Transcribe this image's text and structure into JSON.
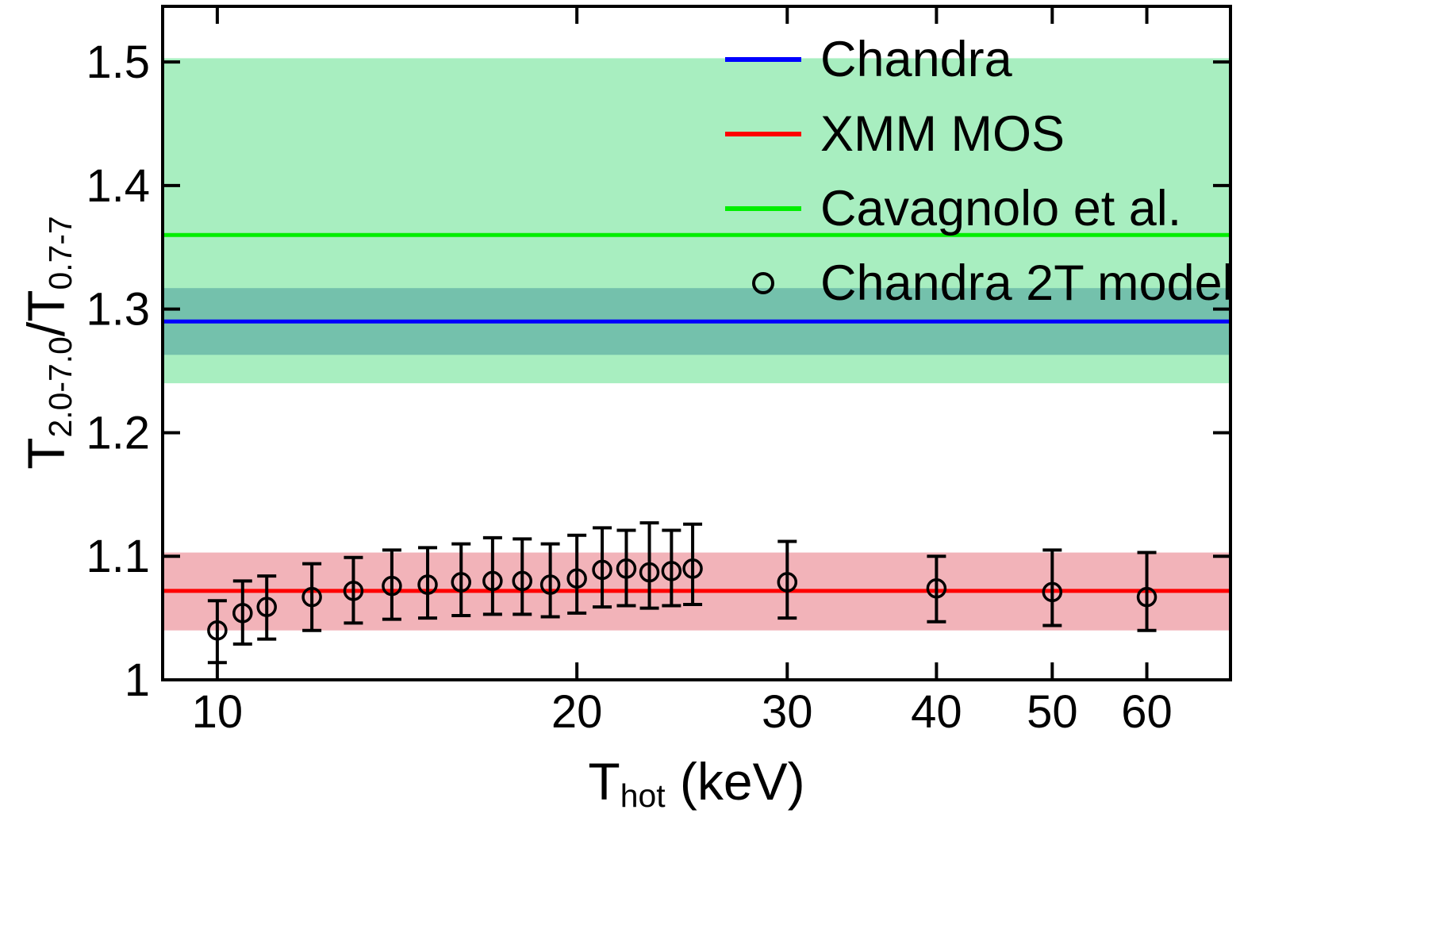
{
  "figure": {
    "background": "#ffffff"
  },
  "chart_data": {
    "type": "scatter",
    "title": "",
    "xlabel_parts": {
      "main": "T",
      "sub": "hot",
      "rest": " (keV)"
    },
    "ylabel_parts": {
      "t1": "T",
      "sub1": "2.0-7.0",
      "t2": "/T",
      "sub2": "0.7-7"
    },
    "x_scale": "log",
    "y_scale": "linear",
    "xlim": [
      9.0,
      70.5
    ],
    "ylim": [
      1.0,
      1.545
    ],
    "xticks": [
      10,
      20,
      30,
      40,
      50,
      60
    ],
    "xtick_labels": [
      "10",
      "20",
      "30",
      "40",
      "50",
      "60"
    ],
    "yticks": [
      1.0,
      1.1,
      1.2,
      1.3,
      1.4,
      1.5
    ],
    "ytick_labels": [
      "1",
      "1.1",
      "1.2",
      "1.3",
      "1.4",
      "1.5"
    ],
    "grid": false,
    "bands": [
      {
        "name": "cavagnolo-band",
        "y0": 1.24,
        "y1": 1.503,
        "color": "#a8eec0"
      },
      {
        "name": "chandra-band",
        "y0": 1.263,
        "y1": 1.317,
        "color": "#74c1ac"
      },
      {
        "name": "xmm-band",
        "y0": 1.04,
        "y1": 1.103,
        "color": "#f2b3b9"
      }
    ],
    "hlines": [
      {
        "name": "cavagnolo-line",
        "y": 1.36,
        "color": "#00ee00"
      },
      {
        "name": "chandra-line",
        "y": 1.29,
        "color": "#0000ff"
      },
      {
        "name": "xmm-line",
        "y": 1.072,
        "color": "#ff0000"
      }
    ],
    "series": [
      {
        "name": "Chandra 2T model",
        "marker": "circle",
        "color": "#000000",
        "points_format": [
          "x",
          "y",
          "err_lo",
          "err_hi"
        ],
        "points": [
          [
            10.0,
            1.04,
            1.014,
            1.064
          ],
          [
            10.5,
            1.054,
            1.029,
            1.08
          ],
          [
            11.0,
            1.059,
            1.033,
            1.084
          ],
          [
            12.0,
            1.067,
            1.04,
            1.094
          ],
          [
            13.0,
            1.072,
            1.046,
            1.099
          ],
          [
            14.0,
            1.076,
            1.049,
            1.105
          ],
          [
            15.0,
            1.077,
            1.05,
            1.107
          ],
          [
            16.0,
            1.079,
            1.052,
            1.11
          ],
          [
            17.0,
            1.08,
            1.053,
            1.115
          ],
          [
            18.0,
            1.08,
            1.053,
            1.114
          ],
          [
            19.0,
            1.077,
            1.051,
            1.11
          ],
          [
            20.0,
            1.082,
            1.054,
            1.117
          ],
          [
            21.0,
            1.089,
            1.059,
            1.123
          ],
          [
            22.0,
            1.09,
            1.06,
            1.121
          ],
          [
            23.0,
            1.087,
            1.058,
            1.127
          ],
          [
            24.0,
            1.088,
            1.06,
            1.121
          ],
          [
            25.0,
            1.09,
            1.061,
            1.126
          ],
          [
            30.0,
            1.079,
            1.05,
            1.112
          ],
          [
            40.0,
            1.074,
            1.047,
            1.1
          ],
          [
            50.0,
            1.071,
            1.044,
            1.105
          ],
          [
            60.0,
            1.067,
            1.04,
            1.103
          ]
        ]
      }
    ],
    "legend_position": "top-right",
    "legend": [
      {
        "label": "Chandra",
        "sample": "line",
        "color": "#0000ff"
      },
      {
        "label": "XMM MOS",
        "sample": "line",
        "color": "#ff0000"
      },
      {
        "label": "Cavagnolo et al.",
        "sample": "line",
        "color": "#00ee00"
      },
      {
        "label": "Chandra 2T model",
        "sample": "circle",
        "color": "#000000"
      }
    ]
  }
}
